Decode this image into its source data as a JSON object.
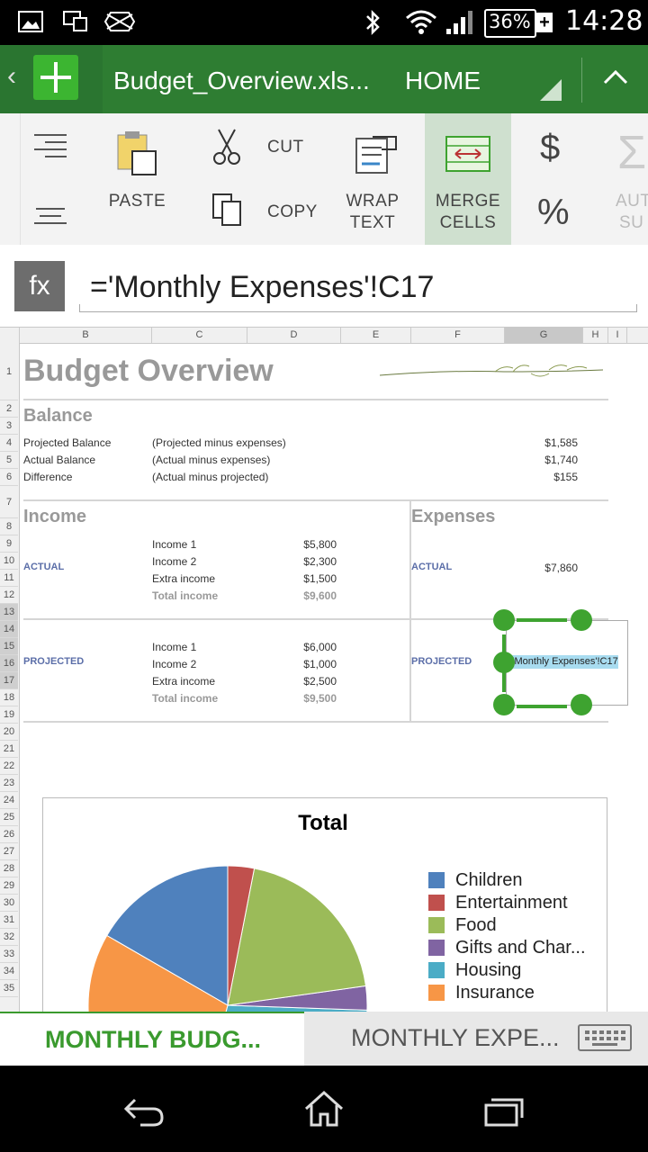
{
  "status_bar": {
    "battery": "36%",
    "time": "14:28"
  },
  "app_bar": {
    "filename": "Budget_Overview.xls...",
    "menu": "HOME"
  },
  "ribbon": {
    "paste": "PASTE",
    "cut": "CUT",
    "copy": "COPY",
    "wrap_line1": "WRAP",
    "wrap_line2": "TEXT",
    "merge_line1": "MERGE",
    "merge_line2": "CELLS",
    "currency_symbol": "$",
    "percent_symbol": "%",
    "autosum_line1": "AUT",
    "autosum_line2": "SU"
  },
  "formula_bar": {
    "fx_label": "fx",
    "formula": "='Monthly Expenses'!C17"
  },
  "columns": [
    "B",
    "C",
    "D",
    "E",
    "F",
    "G",
    "H",
    "I"
  ],
  "rows": [
    "1",
    "2",
    "3",
    "4",
    "5",
    "6",
    "7",
    "8",
    "9",
    "10",
    "11",
    "12",
    "13",
    "14",
    "15",
    "16",
    "17",
    "18",
    "19",
    "20",
    "21",
    "22",
    "23",
    "24",
    "25",
    "26",
    "27",
    "28",
    "29",
    "30",
    "31",
    "32",
    "33",
    "34",
    "35"
  ],
  "sheet": {
    "title": "Budget Overview",
    "balance": {
      "heading": "Balance",
      "rows": [
        {
          "label": "Projected Balance",
          "desc": "(Projected  minus expenses)",
          "value": "$1,585"
        },
        {
          "label": "Actual Balance",
          "desc": "(Actual  minus expenses)",
          "value": "$1,740"
        },
        {
          "label": "Difference",
          "desc": "(Actual minus projected)",
          "value": "$155"
        }
      ]
    },
    "income": {
      "heading": "Income",
      "actual_label": "ACTUAL",
      "actual": [
        {
          "label": "Income 1",
          "value": "$5,800"
        },
        {
          "label": "Income 2",
          "value": "$2,300"
        },
        {
          "label": "Extra income",
          "value": "$1,500"
        },
        {
          "label": "Total income",
          "value": "$9,600"
        }
      ],
      "projected_label": "PROJECTED",
      "projected": [
        {
          "label": "Income 1",
          "value": "$6,000"
        },
        {
          "label": "Income 2",
          "value": "$1,000"
        },
        {
          "label": "Extra income",
          "value": "$2,500"
        },
        {
          "label": "Total income",
          "value": "$9,500"
        }
      ]
    },
    "expenses": {
      "heading": "Expenses",
      "actual_label": "ACTUAL",
      "actual_value": "$7,860",
      "projected_label": "PROJECTED",
      "projected_formula": "='Monthly Expenses'!C17"
    }
  },
  "chart": {
    "title": "Total",
    "legend": [
      "Children",
      "Entertainment",
      "Food",
      "Gifts and Char...",
      "Housing",
      "Insurance"
    ]
  },
  "chart_data": {
    "type": "pie",
    "title": "Total",
    "labels": [
      "Children",
      "Entertainment",
      "Food",
      "Gifts and Char...",
      "Housing",
      "Insurance"
    ],
    "colors": [
      "#4f81bd",
      "#c0504d",
      "#9bbb59",
      "#8064a2",
      "#4bacc6",
      "#f79646"
    ]
  },
  "tabs": {
    "active": "MONTHLY BUDG...",
    "inactive": "MONTHLY EXPE..."
  },
  "colors": {
    "accent_green": "#2e7d32",
    "tab_green": "#3a9a2e",
    "header_gray": "#999999",
    "label_blue": "#5b6ea8"
  }
}
